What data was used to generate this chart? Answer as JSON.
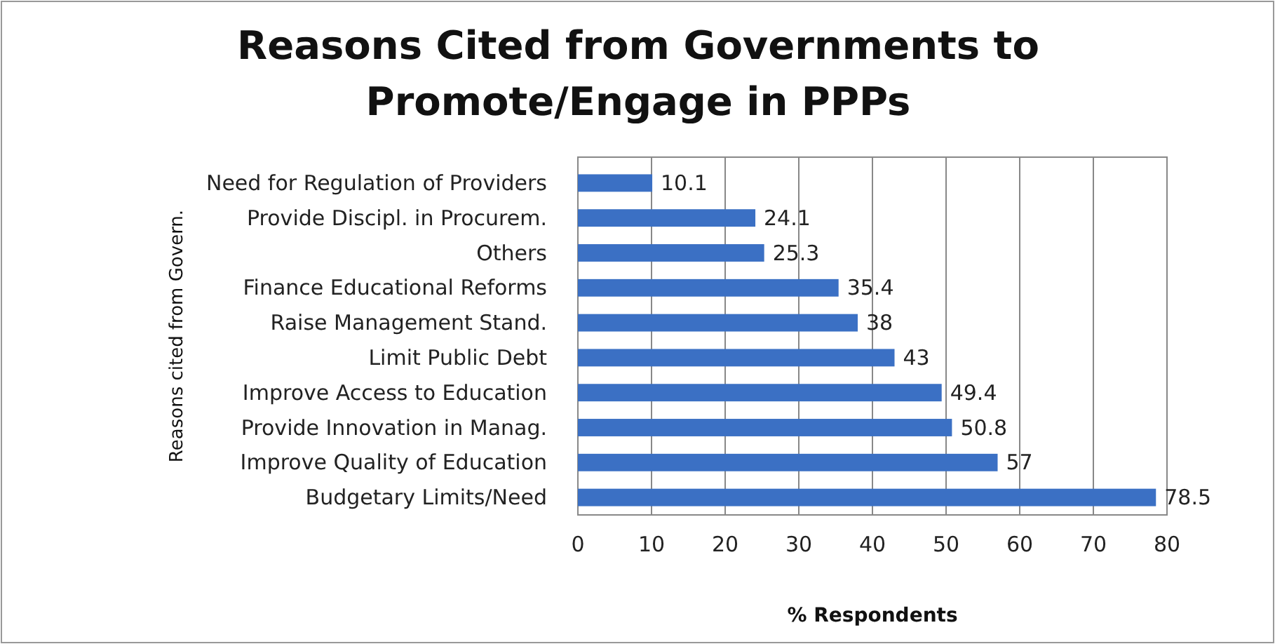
{
  "chart_data": {
    "type": "bar",
    "orientation": "horizontal",
    "title": "Reasons Cited from Governments to\nPromote/Engage in PPPs",
    "xlabel": "% Respondents",
    "ylabel": "Reasons cited from Govern.",
    "categories": [
      "Need for Regulation of Providers",
      "Provide Discipl. in Procurem.",
      "Others",
      "Finance Educational Reforms",
      "Raise Management Stand.",
      "Limit Public Debt",
      "Improve Access to Education",
      "Provide Innovation in Manag.",
      "Improve Quality of Education",
      "Budgetary Limits/Need"
    ],
    "values": [
      10.1,
      24.1,
      25.3,
      35.4,
      38,
      43,
      49.4,
      50.8,
      57,
      78.5
    ],
    "color": "#3b70c4",
    "xlim": [
      0,
      80
    ],
    "xticks": [
      0,
      10,
      20,
      30,
      40,
      50,
      60,
      70,
      80
    ],
    "grid": "x",
    "data_labels": true
  }
}
